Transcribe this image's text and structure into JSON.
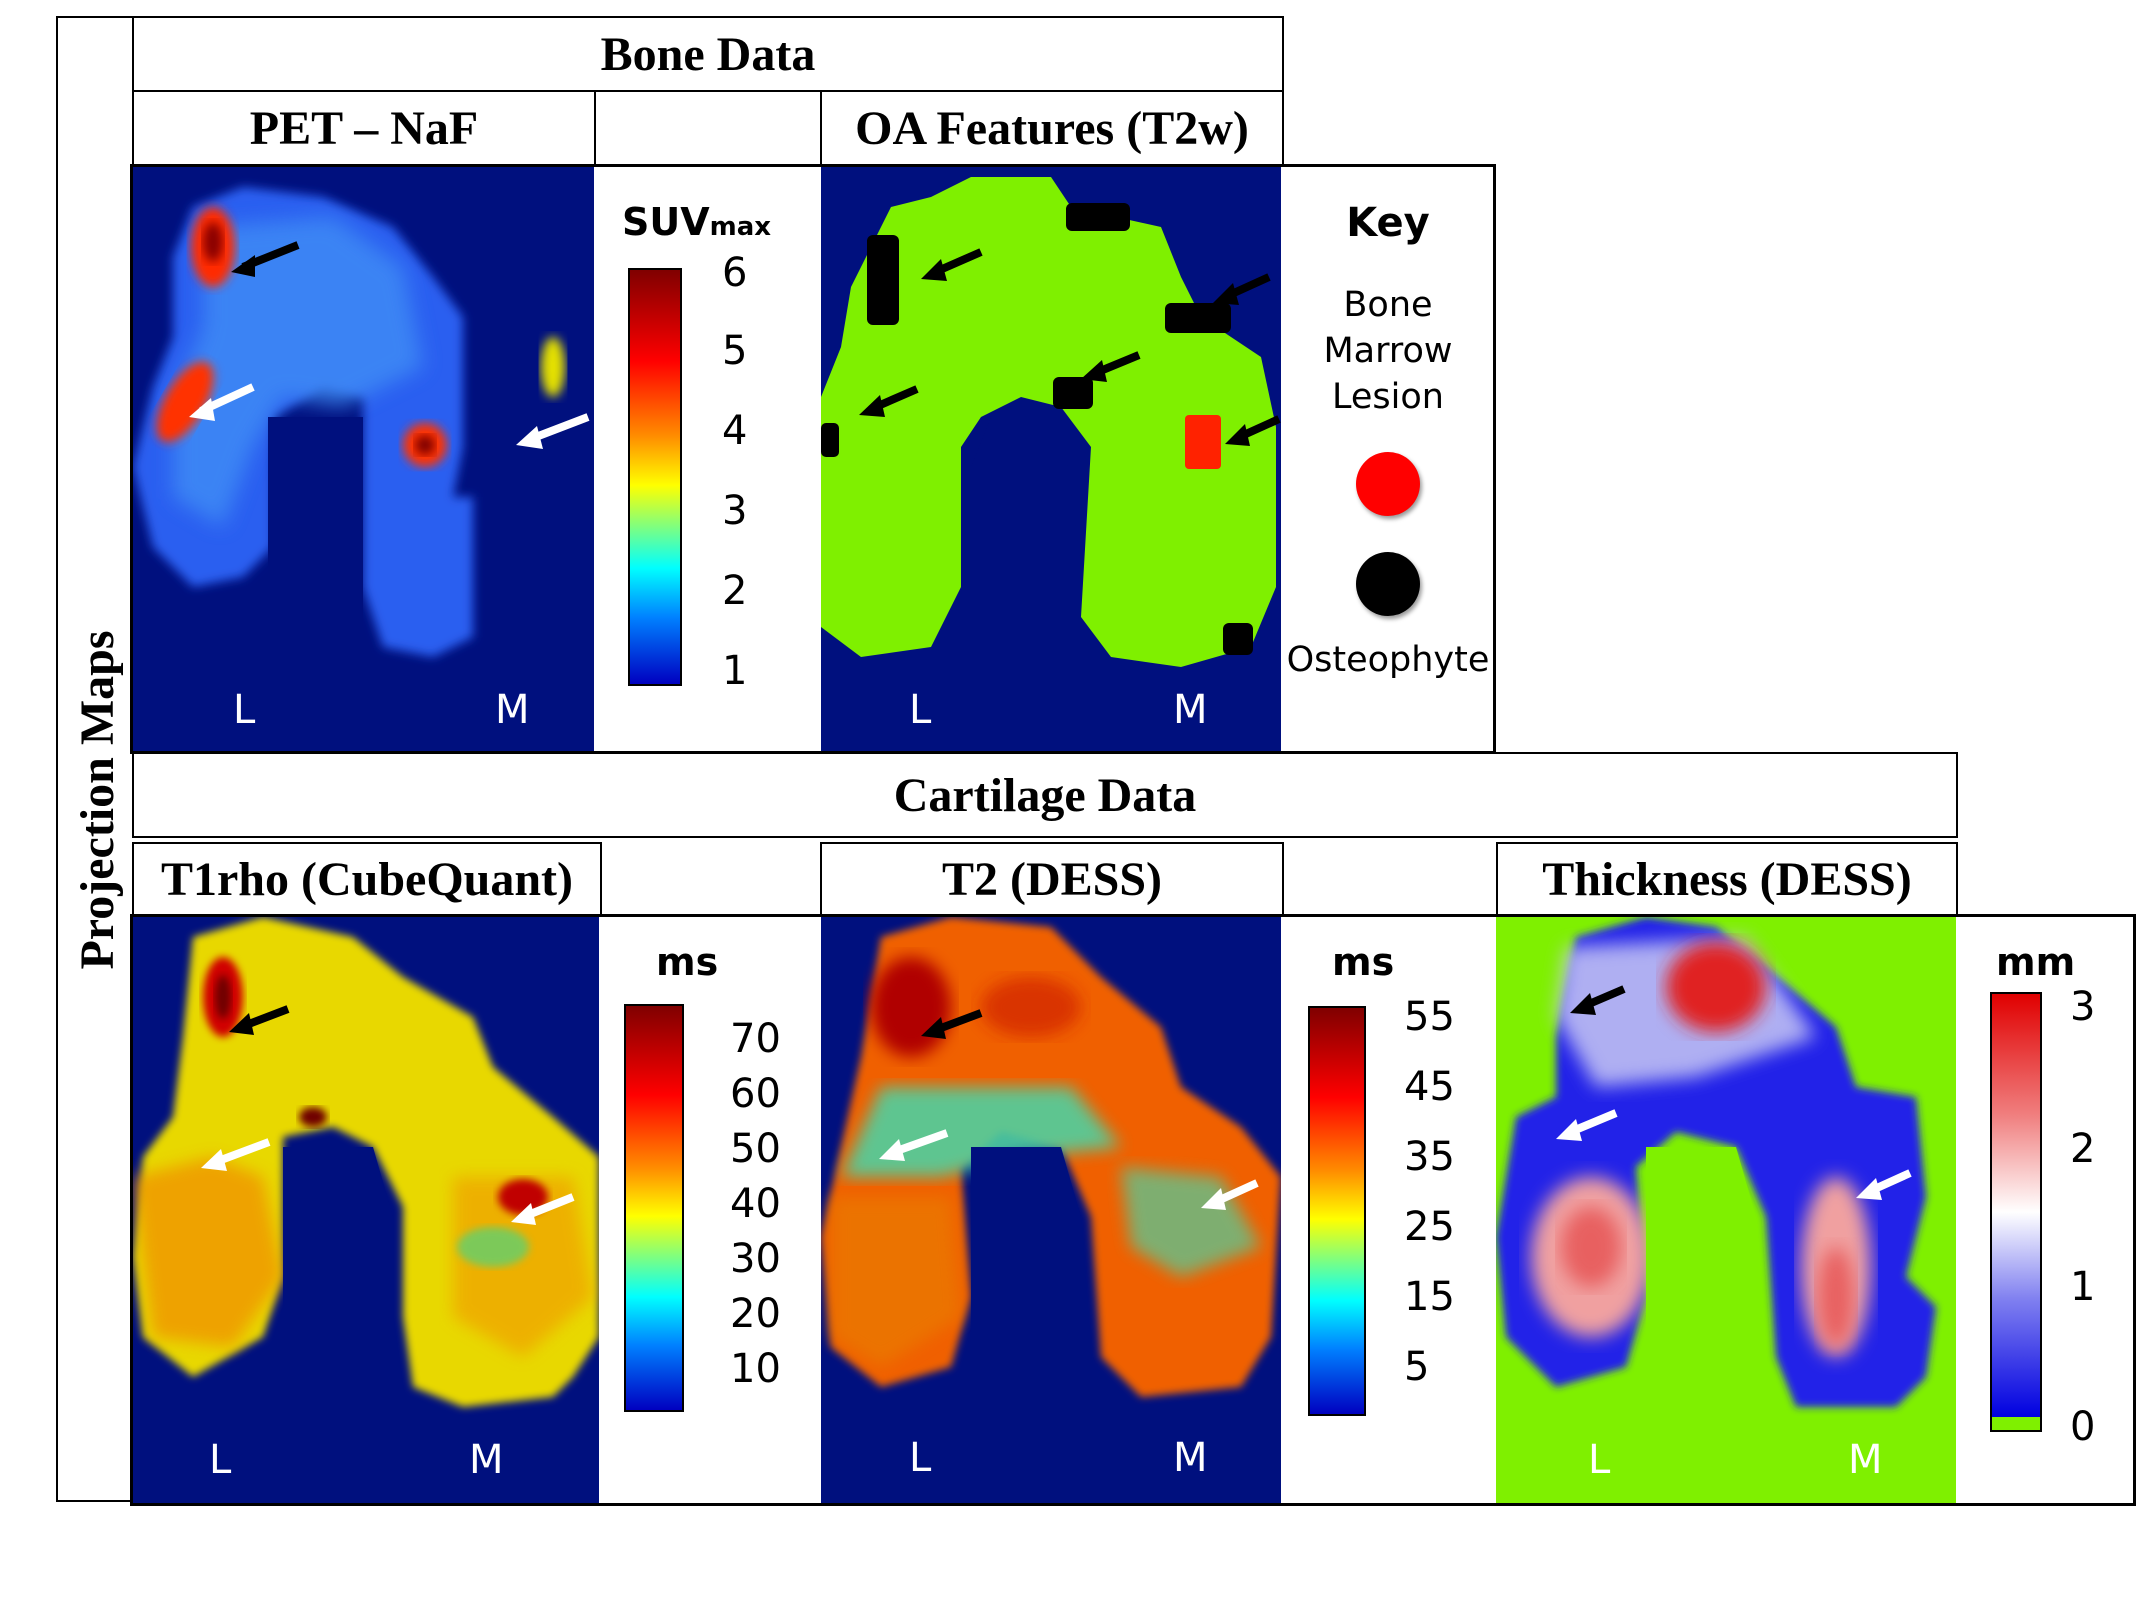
{
  "side_label": "Projection Maps",
  "bone": {
    "title": "Bone Data",
    "pet": {
      "title": "PET – NaF",
      "unit_main": "SUV",
      "unit_sub": "max",
      "ticks": [
        "6",
        "5",
        "4",
        "3",
        "2",
        "1"
      ],
      "side_left": "L",
      "side_right": "M"
    },
    "oa": {
      "title": "OA Features (T2w)",
      "side_left": "L",
      "side_right": "M"
    },
    "key": {
      "title": "Key",
      "lesion_label_1": "Bone",
      "lesion_label_2": "Marrow",
      "lesion_label_3": "Lesion",
      "osteophyte_label": "Osteophyte",
      "lesion_color": "#ff0000",
      "osteophyte_color": "#000000"
    }
  },
  "cartilage": {
    "title": "Cartilage Data",
    "t1rho": {
      "title": "T1rho (CubeQuant)",
      "unit": "ms",
      "ticks": [
        "70",
        "60",
        "50",
        "40",
        "30",
        "20",
        "10"
      ],
      "side_left": "L",
      "side_right": "M"
    },
    "t2": {
      "title": "T2 (DESS)",
      "unit": "ms",
      "ticks": [
        "55",
        "45",
        "35",
        "25",
        "15",
        "5"
      ],
      "side_left": "L",
      "side_right": "M"
    },
    "thickness": {
      "title": "Thickness (DESS)",
      "unit": "mm",
      "ticks": [
        "3",
        "2",
        "1",
        "0"
      ],
      "side_left": "L",
      "side_right": "M"
    }
  },
  "colors": {
    "background_map": "#00107e",
    "oa_green": "#7ff000",
    "thickness_bg": "#7ff000"
  }
}
